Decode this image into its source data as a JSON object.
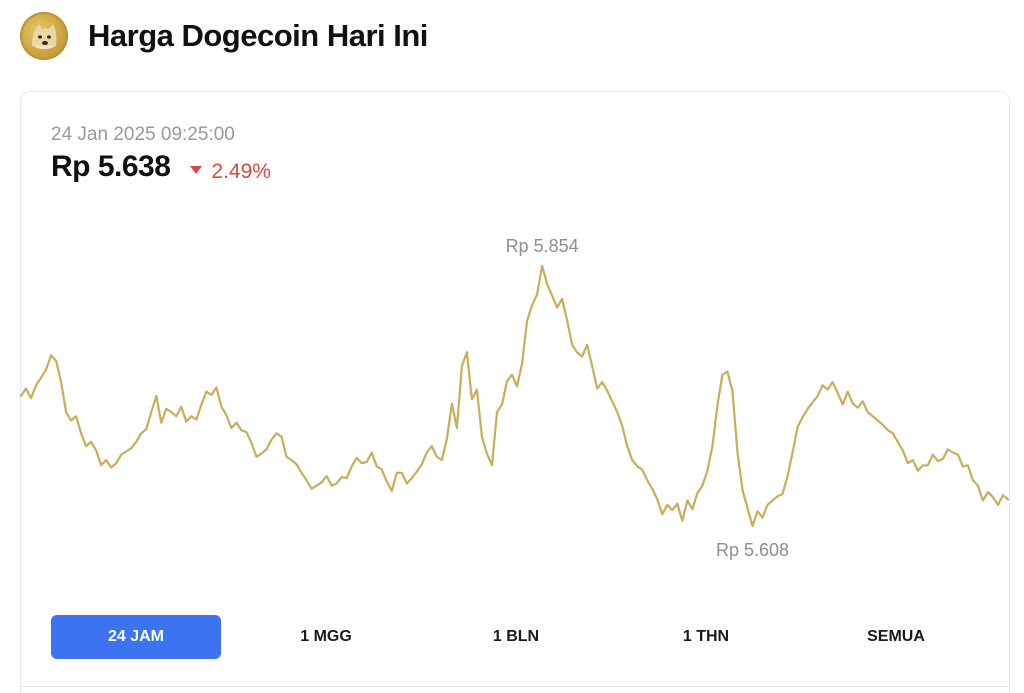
{
  "header": {
    "title": "Harga Dogecoin Hari Ini",
    "logo_icon": "dogecoin-logo-icon"
  },
  "price_card": {
    "timestamp": "24 Jan 2025 09:25:00",
    "price": "Rp 5.638",
    "change": "2.49%",
    "change_direction": "down",
    "change_color": "#d9493f"
  },
  "chart_data": {
    "type": "line",
    "line_color": "#c8ad5a",
    "grid": false,
    "high_label": "Rp 5.854",
    "low_label": "Rp 5.608",
    "ylim": [
      5600,
      5870
    ],
    "y": [
      5735,
      5742,
      5733,
      5745,
      5752,
      5760,
      5773,
      5768,
      5748,
      5720,
      5712,
      5716,
      5700,
      5688,
      5692,
      5684,
      5670,
      5675,
      5668,
      5672,
      5680,
      5683,
      5686,
      5692,
      5700,
      5704,
      5720,
      5735,
      5710,
      5723,
      5720,
      5716,
      5725,
      5711,
      5716,
      5713,
      5727,
      5739,
      5736,
      5743,
      5725,
      5717,
      5705,
      5710,
      5703,
      5701,
      5691,
      5678,
      5681,
      5685,
      5694,
      5700,
      5697,
      5678,
      5675,
      5671,
      5663,
      5656,
      5648,
      5651,
      5654,
      5660,
      5651,
      5653,
      5659,
      5658,
      5669,
      5677,
      5672,
      5673,
      5682,
      5669,
      5666,
      5655,
      5646,
      5663,
      5663,
      5653,
      5658,
      5664,
      5671,
      5682,
      5688,
      5678,
      5675,
      5695,
      5728,
      5705,
      5763,
      5776,
      5732,
      5741,
      5697,
      5681,
      5670,
      5720,
      5727,
      5749,
      5755,
      5744,
      5765,
      5805,
      5820,
      5830,
      5857,
      5840,
      5829,
      5818,
      5826,
      5806,
      5783,
      5776,
      5772,
      5783,
      5763,
      5742,
      5748,
      5740,
      5730,
      5720,
      5707,
      5688,
      5675,
      5669,
      5666,
      5656,
      5648,
      5638,
      5624,
      5633,
      5628,
      5634,
      5618,
      5637,
      5629,
      5644,
      5651,
      5665,
      5688,
      5726,
      5755,
      5758,
      5740,
      5682,
      5647,
      5630,
      5613,
      5627,
      5621,
      5633,
      5637,
      5641,
      5643,
      5660,
      5682,
      5706,
      5715,
      5723,
      5729,
      5735,
      5745,
      5741,
      5748,
      5738,
      5727,
      5739,
      5728,
      5724,
      5730,
      5720,
      5716,
      5712,
      5708,
      5703,
      5700,
      5692,
      5684,
      5672,
      5675,
      5665,
      5670,
      5670,
      5680,
      5674,
      5676,
      5685,
      5682,
      5680,
      5669,
      5670,
      5656,
      5651,
      5637,
      5645,
      5640,
      5633,
      5642,
      5638
    ]
  },
  "range_tabs": [
    {
      "label": "24 JAM",
      "active": true
    },
    {
      "label": "1 MGG",
      "active": false
    },
    {
      "label": "1 BLN",
      "active": false
    },
    {
      "label": "1 THN",
      "active": false
    },
    {
      "label": "SEMUA",
      "active": false
    }
  ]
}
